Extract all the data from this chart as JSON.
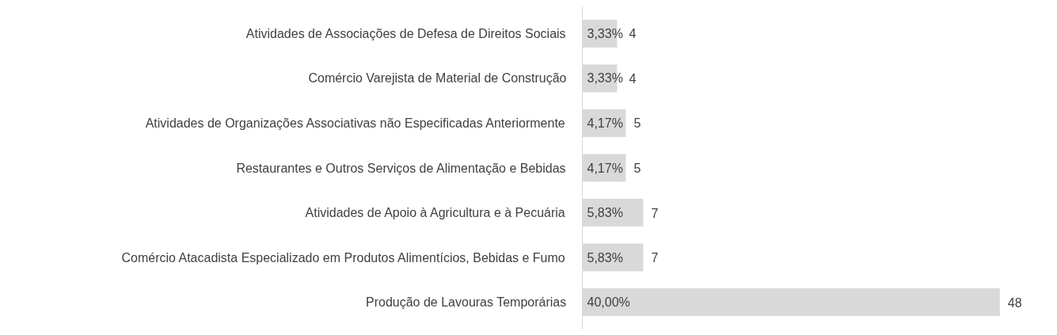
{
  "chart_data": {
    "type": "bar",
    "orientation": "horizontal",
    "categories": [
      "Atividades de Associações de Defesa de Direitos Sociais",
      "Comércio Varejista de Material de Construção",
      "Atividades de Organizações Associativas não Especificadas Anteriormente",
      "Restaurantes e Outros Serviços de Alimentação e Bebidas",
      "Atividades de Apoio à Agricultura e à Pecuária",
      "Comércio Atacadista Especializado em Produtos Alimentícios, Bebidas e Fumo",
      "Produção de Lavouras Temporárias"
    ],
    "values": [
      4,
      4,
      5,
      5,
      7,
      7,
      48
    ],
    "color": "#d9d9d9",
    "data_labels": true,
    "grid": false,
    "annotations": [
      "3,33%",
      "3,33%",
      "4,17%",
      "4,17%",
      "5,83%",
      "5,83%",
      "40,00%"
    ]
  }
}
